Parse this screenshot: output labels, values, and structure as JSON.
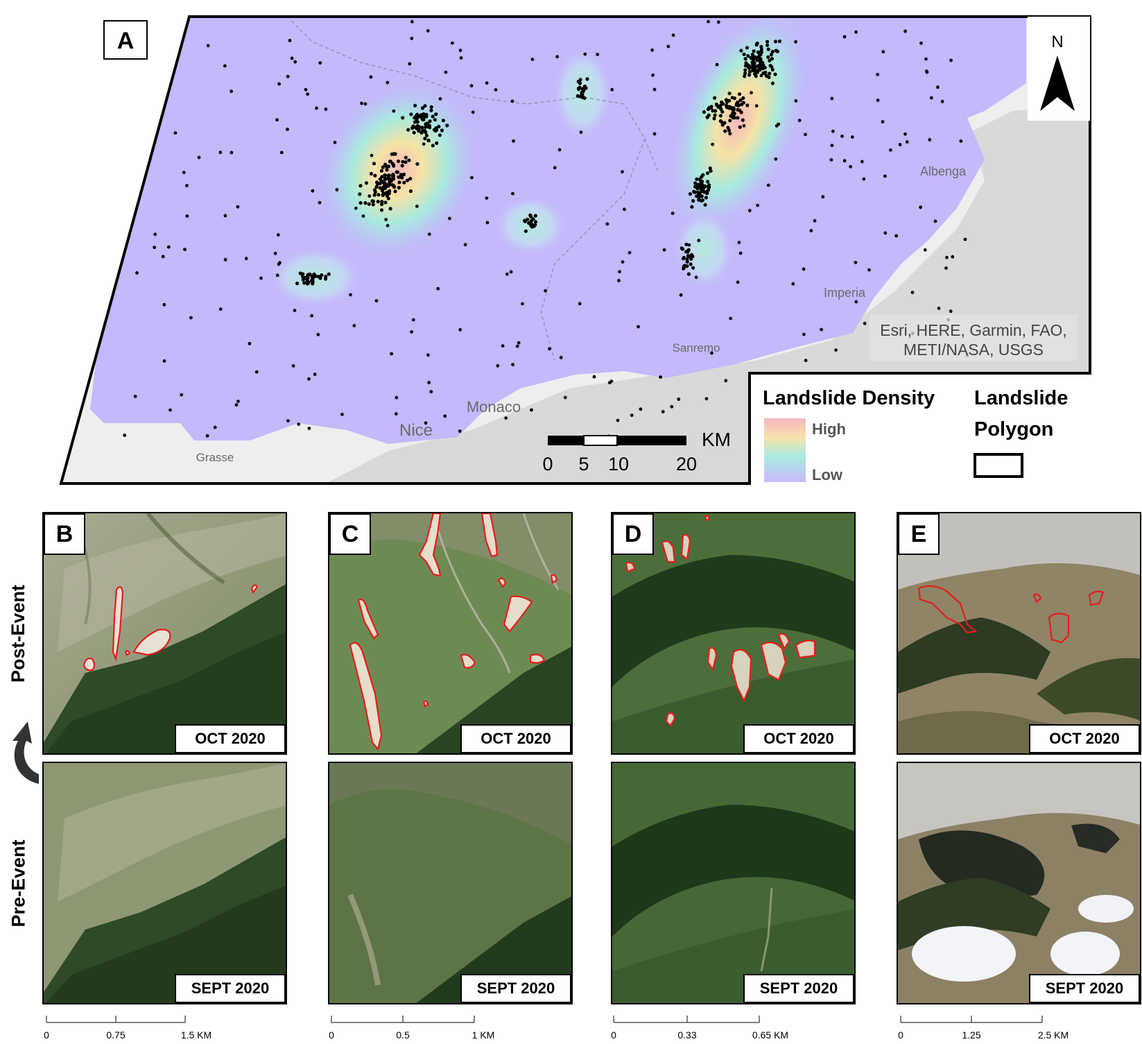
{
  "panel_a": {
    "letter": "A",
    "north": "N",
    "attribution_line1": "Esri, HERE, Garmin, FAO,",
    "attribution_line2": "METI/NASA, USGS",
    "places": {
      "albenga": "Albenga",
      "imperia": "Imperia",
      "sanremo": "Sanremo",
      "monaco": "Monaco",
      "nice": "Nice",
      "grasse": "Grasse"
    },
    "scale": {
      "unit": "KM",
      "ticks": [
        "0",
        "5",
        "10",
        "20"
      ]
    },
    "legend": {
      "density_title": "Landslide Density",
      "high": "High",
      "low": "Low",
      "polygon_title_line1": "Landslide",
      "polygon_title_line2": "Polygon"
    },
    "colors": {
      "density_low": "#c7b7ff",
      "density_mid": "#9be7e0",
      "density_high": "#f6c6c0",
      "sea": "#d9d9d9",
      "land_outside": "#eeeeee",
      "points": "#000000"
    }
  },
  "panels": [
    {
      "letter": "B",
      "post_label": "OCT 2020",
      "pre_label": "SEPT 2020",
      "scale": [
        "0",
        "0.75",
        "1.5 KM"
      ]
    },
    {
      "letter": "C",
      "post_label": "OCT 2020",
      "pre_label": "SEPT 2020",
      "scale": [
        "0",
        "0.5",
        "1 KM"
      ]
    },
    {
      "letter": "D",
      "post_label": "OCT 2020",
      "pre_label": "SEPT 2020",
      "scale": [
        "0",
        "0.33",
        "0.65 KM"
      ]
    },
    {
      "letter": "E",
      "post_label": "OCT 2020",
      "pre_label": "SEPT 2020",
      "scale": [
        "0",
        "1.25",
        "2.5 KM"
      ]
    }
  ],
  "row_labels": {
    "post": "Post-Event",
    "pre": "Pre-Event"
  },
  "polygon_color": "#e81c1c"
}
